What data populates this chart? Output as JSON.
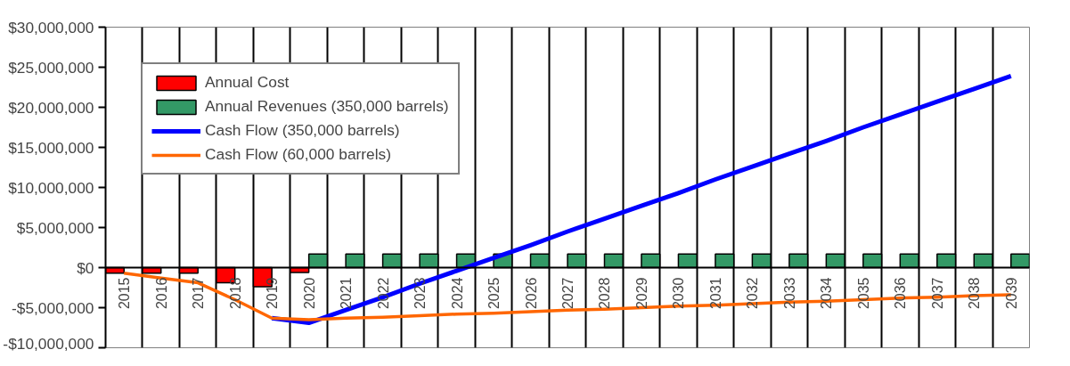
{
  "chart_data": {
    "type": "bar",
    "categories": [
      "2015",
      "2016",
      "2017",
      "2018",
      "2019",
      "2020",
      "2021",
      "2022",
      "2023",
      "2024",
      "2025",
      "2026",
      "2027",
      "2028",
      "2029",
      "2030",
      "2031",
      "2032",
      "2033",
      "2034",
      "2035",
      "2036",
      "2037",
      "2038",
      "2039"
    ],
    "series": [
      {
        "name": "Annual Cost",
        "color": "#ff0000",
        "values": [
          -700000,
          -700000,
          -700000,
          -1900000,
          -2400000,
          -600000,
          null,
          null,
          null,
          null,
          null,
          null,
          null,
          null,
          null,
          null,
          null,
          null,
          null,
          null,
          null,
          null,
          null,
          null,
          null
        ]
      },
      {
        "name": "Annual Revenues (350,000 barrels)",
        "color": "#339966",
        "values": [
          null,
          null,
          null,
          null,
          null,
          1700000,
          1700000,
          1700000,
          1700000,
          1700000,
          1700000,
          1700000,
          1700000,
          1700000,
          1700000,
          1700000,
          1700000,
          1700000,
          1700000,
          1700000,
          1700000,
          1700000,
          1700000,
          1700000,
          1700000
        ]
      },
      {
        "name": "Cash Flow (350,000 barrels)",
        "type": "line",
        "color": "#0000ff",
        "values": [
          null,
          null,
          null,
          null,
          -6300000,
          -6900000,
          -5300000,
          -3700000,
          -2000000,
          -400000,
          1200000,
          2800000,
          4500000,
          6100000,
          7700000,
          9300000,
          11000000,
          12600000,
          14200000,
          15800000,
          17500000,
          19100000,
          20700000,
          22300000,
          23900000
        ]
      },
      {
        "name": "Cash Flow (60,000 barrels)",
        "type": "line",
        "color": "#ff6600",
        "values": [
          -700000,
          -1300000,
          -1900000,
          -4000000,
          -6300000,
          -6500000,
          -6300000,
          -6200000,
          -6000000,
          -5800000,
          -5700000,
          -5500000,
          -5300000,
          -5200000,
          -5000000,
          -4800000,
          -4700000,
          -4500000,
          -4300000,
          -4200000,
          -4000000,
          -3800000,
          -3700000,
          -3500000,
          -3400000
        ]
      }
    ],
    "ylim": [
      -10000000,
      30000000
    ],
    "yticks": [
      {
        "value": -10000000,
        "label": "-$10,000,000"
      },
      {
        "value": -5000000,
        "label": "-$5,000,000"
      },
      {
        "value": 0,
        "label": "$0"
      },
      {
        "value": 5000000,
        "label": "$5,000,000"
      },
      {
        "value": 10000000,
        "label": "$10,000,000"
      },
      {
        "value": 15000000,
        "label": "$15,000,000"
      },
      {
        "value": 20000000,
        "label": "$20,000,000"
      },
      {
        "value": 25000000,
        "label": "$25,000,000"
      },
      {
        "value": 30000000,
        "label": "$30,000,000"
      }
    ],
    "grid": "x",
    "legend": "top left"
  }
}
